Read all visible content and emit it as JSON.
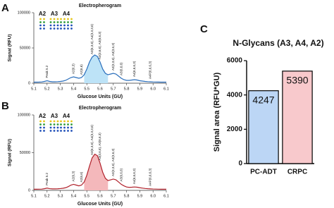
{
  "panel_labels": [
    "A",
    "B",
    "C"
  ],
  "chart_data": [
    {
      "type": "line",
      "title": "Electropherogram",
      "x_label": "Glucose Units (GU)",
      "y_label": "Signal (RFU)",
      "xlim": [
        5.1,
        6.1
      ],
      "xticks": [
        5.1,
        5.2,
        5.3,
        5.4,
        5.5,
        5.6,
        5.7,
        5.8,
        5.9,
        {
          "value": 6,
          "label": "6.0"
        },
        6.1
      ],
      "ylim": [
        0,
        100000
      ],
      "yticks": [
        0,
        50000,
        100000
      ],
      "x": [
        5.1,
        5.12,
        5.14,
        5.16,
        5.18,
        5.2,
        5.22,
        5.24,
        5.26,
        5.28,
        5.3,
        5.32,
        5.34,
        5.36,
        5.38,
        5.4,
        5.42,
        5.44,
        5.46,
        5.48,
        5.5,
        5.52,
        5.54,
        5.56,
        5.58,
        5.6,
        5.62,
        5.64,
        5.66,
        5.68,
        5.7,
        5.72,
        5.74,
        5.76,
        5.78,
        5.8,
        5.82,
        5.84,
        5.86,
        5.88,
        5.9,
        5.92,
        5.94,
        5.96,
        5.98,
        6,
        6.02,
        6.04,
        6.06,
        6.08,
        6.1
      ],
      "series": [
        {
          "color": "#2a6ebb",
          "fill_color": "#bde3f7",
          "values": [
            1500,
            1500,
            1600,
            1800,
            2500,
            3500,
            2500,
            2000,
            2000,
            2200,
            2500,
            3000,
            4000,
            6000,
            8000,
            9000,
            8000,
            7000,
            8000,
            12000,
            20000,
            30000,
            37000,
            40000,
            38000,
            30000,
            20000,
            14000,
            12000,
            13000,
            14000,
            13000,
            10000,
            7000,
            5000,
            4000,
            4000,
            4500,
            5000,
            4500,
            3500,
            3000,
            2500,
            2200,
            2000,
            1800,
            1700,
            1600,
            1500,
            1500,
            1500
          ]
        }
      ],
      "shaded_xlim": [
        5.48,
        5.66
      ],
      "group_labels": [
        "A2",
        "A3",
        "A4"
      ],
      "annotations": [
        {
          "text": "Peak 5.2",
          "x": 5.2
        },
        {
          "text": "A2(6,3)",
          "x": 5.4
        },
        {
          "text": "A2(6,6)",
          "x": 5.46
        },
        {
          "text": "A3(6,3,6), A4(3,3,3,6)",
          "x": 5.54
        },
        {
          "text": "A3(3,6,6), A3(6,6,3)",
          "x": 5.6
        },
        {
          "text": "A3(3,3,6), A3(3,6,3)",
          "x": 5.7
        },
        {
          "text": "A3(6,6,6)",
          "x": 5.76
        },
        {
          "text": "A4(6,6,6,3)",
          "x": 5.86
        },
        {
          "text": "A4P(6,6,6,3)",
          "x": 5.98
        }
      ]
    },
    {
      "type": "line",
      "title": "Electropherogram",
      "x_label": "Glucose Units (GU)",
      "y_label": "Signal (RFU)",
      "xlim": [
        5.1,
        6.1
      ],
      "xticks": [
        5.1,
        5.2,
        5.3,
        5.4,
        5.5,
        5.6,
        5.7,
        5.8,
        5.9,
        {
          "value": 6,
          "label": "6.0"
        },
        6.1
      ],
      "ylim": [
        0,
        100000
      ],
      "yticks": [
        0,
        50000,
        100000
      ],
      "x": [
        5.1,
        5.12,
        5.14,
        5.16,
        5.18,
        5.2,
        5.22,
        5.24,
        5.26,
        5.28,
        5.3,
        5.32,
        5.34,
        5.36,
        5.38,
        5.4,
        5.42,
        5.44,
        5.46,
        5.48,
        5.5,
        5.52,
        5.54,
        5.56,
        5.58,
        5.6,
        5.62,
        5.64,
        5.66,
        5.68,
        5.7,
        5.72,
        5.74,
        5.76,
        5.78,
        5.8,
        5.82,
        5.84,
        5.86,
        5.88,
        5.9,
        5.92,
        5.94,
        5.96,
        5.98,
        6,
        6.02,
        6.04,
        6.06,
        6.08,
        6.1
      ],
      "series": [
        {
          "color": "#b0202a",
          "fill_color": "#f4b8bb",
          "values": [
            1500,
            1500,
            1600,
            1700,
            2200,
            3000,
            2300,
            2000,
            2000,
            2100,
            2400,
            2800,
            3500,
            5000,
            7000,
            8000,
            7000,
            6000,
            7000,
            11000,
            20000,
            32000,
            43000,
            48000,
            46000,
            36000,
            24000,
            16000,
            13000,
            14000,
            15000,
            14000,
            11000,
            8000,
            6000,
            4500,
            4000,
            4200,
            4500,
            4200,
            3500,
            3000,
            2500,
            2200,
            2000,
            1800,
            1700,
            1600,
            1500,
            1500,
            1500
          ]
        }
      ],
      "shaded_xlim": [
        5.48,
        5.66
      ],
      "group_labels": [
        "A2",
        "A3",
        "A4"
      ],
      "annotations": [
        {
          "text": "Peak 5.2",
          "x": 5.2
        },
        {
          "text": "A2(6,3)",
          "x": 5.4
        },
        {
          "text": "A2(6,6)",
          "x": 5.46
        },
        {
          "text": "A3(6,3,6), A4(3,3,3,6)",
          "x": 5.54
        },
        {
          "text": "A3(3,6,6), A3(6,6,3)",
          "x": 5.6
        },
        {
          "text": "A3(3,3,6), A3(3,6,3)",
          "x": 5.7
        },
        {
          "text": "A3(6,6,6)",
          "x": 5.76
        },
        {
          "text": "A4(6,6,6,3)",
          "x": 5.86
        },
        {
          "text": "A4P(6,6,6,3)",
          "x": 5.98
        }
      ]
    },
    {
      "type": "bar",
      "title": "N-Glycans (A3, A4, A2)",
      "y_label": "Signal area (RFU*GU)",
      "categories": [
        "PC-ADT",
        "CRPC"
      ],
      "values": [
        4247,
        5390
      ],
      "colors": [
        "#bcd6f5",
        "#f8c9cc"
      ],
      "ylim": [
        0,
        6000
      ],
      "yticks": [
        0,
        2000,
        4000,
        6000
      ]
    }
  ]
}
